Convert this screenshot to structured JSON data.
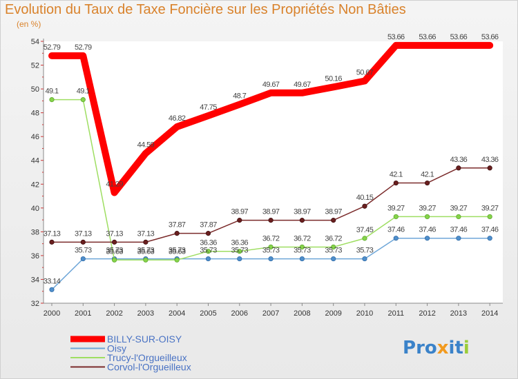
{
  "header": {
    "title": "Evolution du Taux de Taxe Foncière sur les Propriétés Non Bâties",
    "unit": "(en %)"
  },
  "logo": {
    "text": "Proxiti"
  },
  "chart_data": {
    "type": "line",
    "title": "Evolution du Taux de Taxe Foncière sur les Propriétés Non Bâties",
    "ylabel": "(en %)",
    "xlabel": "",
    "ylim": [
      32,
      54
    ],
    "yticks": [
      32,
      34,
      36,
      38,
      40,
      42,
      44,
      46,
      48,
      50,
      52,
      54
    ],
    "x": [
      "2000",
      "2001",
      "2002",
      "2003",
      "2004",
      "2005",
      "2006",
      "2007",
      "2008",
      "2009",
      "2010",
      "2011",
      "2012",
      "2013",
      "2014"
    ],
    "legend_position": "bottom-left",
    "grid": false,
    "series": [
      {
        "name": "BILLY-SUR-OISY",
        "color": "#ff0000",
        "values": [
          52.79,
          52.79,
          41.29,
          44.59,
          46.82,
          47.75,
          48.7,
          49.67,
          49.67,
          50.16,
          50.67,
          53.66,
          53.66,
          53.66,
          53.66
        ],
        "labels": [
          "52.79",
          "52.79",
          "41.29",
          "44.59",
          "46.82",
          "47.75",
          "48.7",
          "49.67",
          "49.67",
          "50.16",
          "50.67",
          "53.66",
          "53.66",
          "53.66",
          "53.66"
        ]
      },
      {
        "name": "Oisy",
        "color": "#6ea6d8",
        "values": [
          33.14,
          35.73,
          35.73,
          35.73,
          35.73,
          35.73,
          35.73,
          35.73,
          35.73,
          35.73,
          35.73,
          37.46,
          37.46,
          37.46,
          37.46
        ],
        "labels": [
          "33.14",
          "35.73",
          "35.73",
          "35.73",
          "35.73",
          "35.73",
          "35.73",
          "35.73",
          "35.73",
          "35.73",
          "35.73",
          "37.46",
          "37.46",
          "37.46",
          "37.46"
        ]
      },
      {
        "name": "Trucy-l'Orgueilleux",
        "color": "#9ede61",
        "values": [
          49.1,
          49.1,
          35.63,
          35.63,
          35.63,
          36.36,
          36.36,
          36.72,
          36.72,
          36.72,
          37.45,
          39.27,
          39.27,
          39.27,
          39.27
        ],
        "labels": [
          "49.1",
          "49.1",
          "35.63",
          "35.63",
          "35.63",
          "36.36",
          "36.36",
          "36.72",
          "36.72",
          "36.72",
          "37.45",
          "39.27",
          "39.27",
          "39.27",
          "39.27"
        ]
      },
      {
        "name": "Corvol-l'Orgueilleux",
        "color": "#7a2a2a",
        "values": [
          37.13,
          37.13,
          37.13,
          37.13,
          37.87,
          37.87,
          38.97,
          38.97,
          38.97,
          38.97,
          40.15,
          42.1,
          42.1,
          43.36,
          43.36
        ],
        "labels": [
          "37.13",
          "37.13",
          "37.13",
          "37.13",
          "37.87",
          "37.87",
          "38.97",
          "38.97",
          "38.97",
          "38.97",
          "40.15",
          "42.1",
          "42.1",
          "43.36",
          "43.36"
        ]
      }
    ]
  }
}
